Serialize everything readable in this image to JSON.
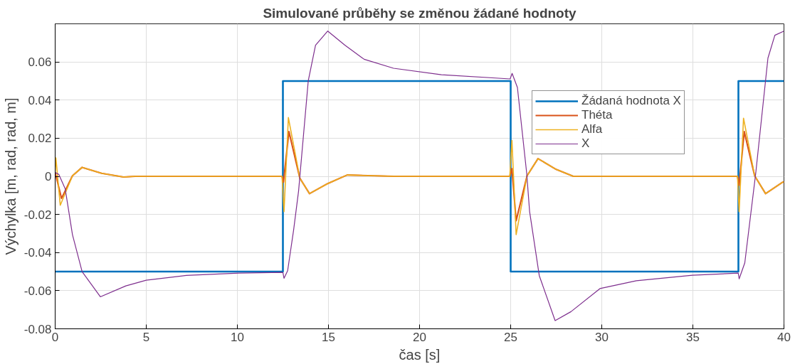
{
  "chart_data": {
    "type": "line",
    "title": "Simulované průběhy se změnou žádané hodnoty",
    "xlabel": "čas [s]",
    "ylabel": "Výchylka [m, rad, rad, m]",
    "xlim": [
      0,
      40
    ],
    "ylim": [
      -0.08,
      0.08
    ],
    "xticks": [
      0,
      5,
      10,
      15,
      20,
      25,
      30,
      35,
      40
    ],
    "yticks": [
      -0.08,
      -0.06,
      -0.04,
      -0.02,
      0,
      0.02,
      0.04,
      0.06
    ],
    "grid": true,
    "legend": "top right",
    "line_style": "solid",
    "marker": "none",
    "series": [
      {
        "name": "Žádaná hodnota X",
        "color": "#0072bd",
        "x": [
          0,
          12.5,
          12.5,
          25,
          25,
          37.5,
          37.5,
          40
        ],
        "values": [
          -0.05,
          -0.05,
          0.05,
          0.05,
          -0.05,
          -0.05,
          0.05,
          0.05
        ]
      },
      {
        "name": "Théta",
        "color": "#d95319",
        "x": [
          0,
          0.35,
          0.95,
          1.48,
          2.55,
          3.75,
          4.4,
          12.45,
          12.53,
          12.83,
          13.43,
          13.96,
          14.96,
          16.03,
          18.6,
          24.95,
          25.07,
          25.3,
          25.9,
          26.5,
          27.5,
          28.44,
          37.45,
          37.54,
          37.82,
          38.39,
          38.99,
          39.92,
          40
        ],
        "values": [
          0.002,
          -0.0116,
          0.0003,
          0.0047,
          0.0016,
          -0.0004,
          0,
          0,
          -0.0031,
          0.0235,
          -0.001,
          -0.0091,
          -0.0038,
          0.0007,
          0,
          0,
          0.004,
          -0.0233,
          0.0003,
          0.0093,
          0.0036,
          0,
          0,
          -0.0047,
          0.0235,
          0.0003,
          -0.0091,
          -0.0031,
          -0.003
        ]
      },
      {
        "name": "Alfa",
        "color": "#edb120",
        "x": [
          0,
          0.04,
          0.28,
          0.95,
          1.48,
          2.55,
          3.75,
          4.4,
          12.45,
          12.56,
          12.8,
          13.43,
          13.96,
          14.96,
          16.03,
          18.6,
          24.95,
          25.07,
          25.3,
          25.9,
          26.5,
          27.5,
          28.44,
          37.45,
          37.54,
          37.78,
          38.39,
          38.99,
          39.92,
          40
        ],
        "values": [
          0.002,
          0.0097,
          -0.0152,
          0.0003,
          0.0047,
          0.0016,
          -0.0004,
          0,
          0,
          -0.0185,
          0.0308,
          -0.001,
          -0.0091,
          -0.0038,
          0.0007,
          0,
          0,
          0.0188,
          -0.0306,
          0.0003,
          0.0093,
          0.0036,
          0,
          0,
          -0.0185,
          0.0305,
          0.0003,
          -0.0091,
          -0.0031,
          -0.003
        ]
      },
      {
        "name": "X",
        "color": "#7e2f8e",
        "x": [
          0,
          0.2,
          0.55,
          0.95,
          1.48,
          2.48,
          3.88,
          5.0,
          7.2,
          10.1,
          12.5,
          12.56,
          12.76,
          13.09,
          13.36,
          13.89,
          14.29,
          14.96,
          15.9,
          16.96,
          18.57,
          21.2,
          24.97,
          25.08,
          25.37,
          25.88,
          26.04,
          26.57,
          27.44,
          28.31,
          29.9,
          31.9,
          34.98,
          37.49,
          37.54,
          37.85,
          38.45,
          39.12,
          39.5,
          40
        ],
        "values": [
          0.002,
          0.001,
          -0.0065,
          -0.0306,
          -0.05,
          -0.0632,
          -0.0575,
          -0.0545,
          -0.052,
          -0.0508,
          -0.0504,
          -0.0535,
          -0.0495,
          -0.028,
          -0.0077,
          0.05,
          0.0688,
          0.0762,
          0.0688,
          0.0614,
          0.0567,
          0.0533,
          0.0511,
          0.054,
          0.0466,
          0.0016,
          -0.0185,
          -0.0521,
          -0.0757,
          -0.071,
          -0.0589,
          -0.0548,
          -0.0519,
          -0.0508,
          -0.0538,
          -0.0454,
          0.0016,
          0.062,
          0.074,
          0.0762
        ]
      }
    ]
  }
}
